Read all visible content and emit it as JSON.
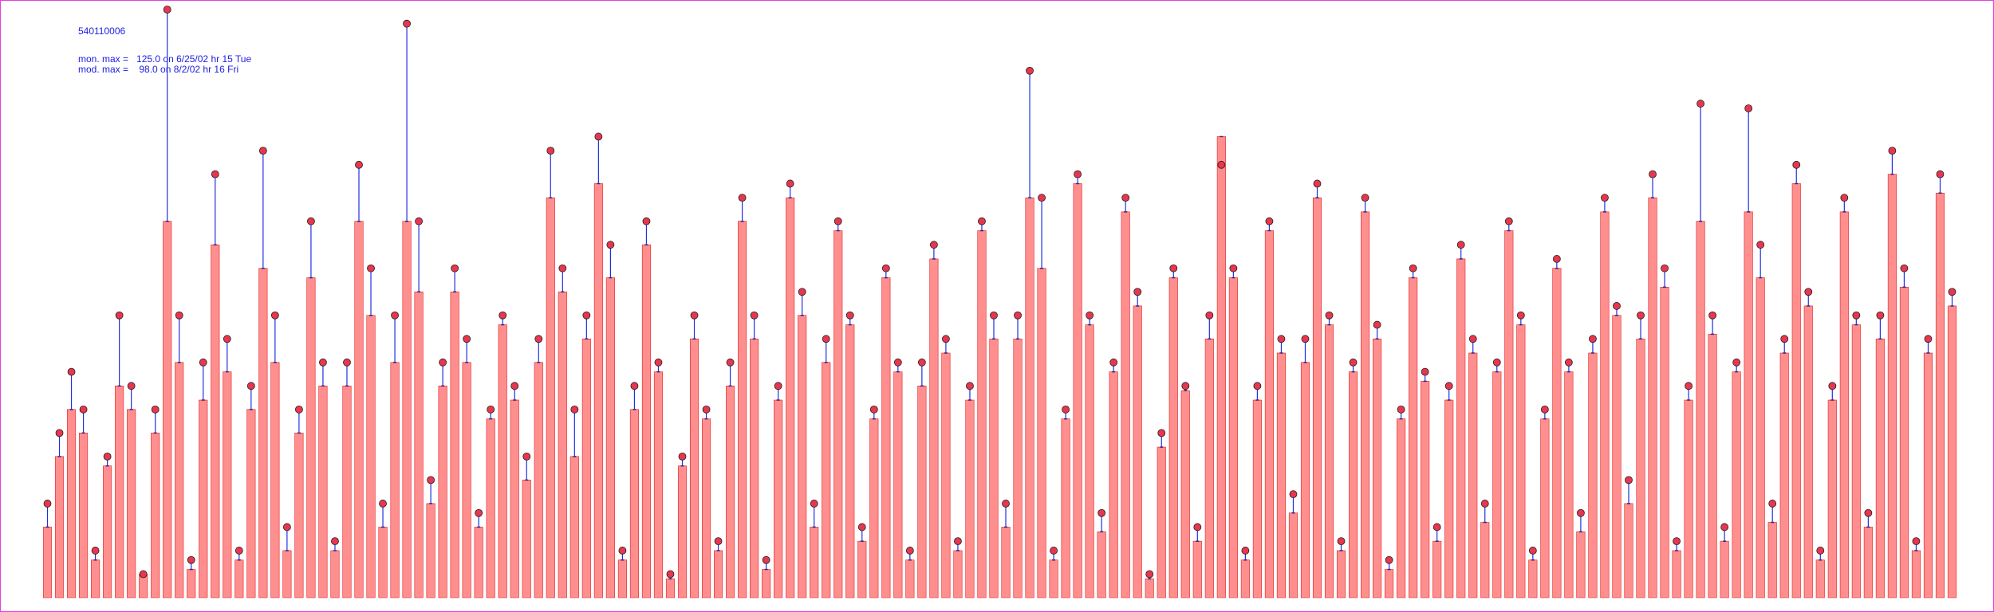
{
  "chart_data": {
    "type": "stem",
    "title": "540110006",
    "annotations": [
      "mon. max =   125.0 on 6/25/02 hr 15 Tue",
      "mod. max =    98.0 on 8/2/02 hr 16 Fri"
    ],
    "series": [
      {
        "color": "#e8364e",
        "values": [
          20,
          35,
          48,
          40,
          10,
          30,
          60,
          45,
          5,
          40,
          125,
          60,
          8,
          50,
          90,
          55,
          10,
          45,
          95,
          60,
          15,
          40,
          80,
          50,
          12,
          50,
          92,
          70,
          20,
          60,
          122,
          80,
          25,
          50,
          70,
          55,
          18,
          40,
          60,
          45,
          30,
          55,
          95,
          70,
          40,
          60,
          98,
          75,
          10,
          45,
          80,
          50,
          5,
          30,
          60,
          40,
          12,
          50,
          85,
          60,
          8,
          45,
          88,
          65,
          20,
          55,
          80,
          60,
          15,
          40,
          70,
          50,
          10,
          50,
          75,
          55,
          12,
          45,
          80,
          60,
          20,
          60,
          112,
          85,
          10,
          40,
          90,
          60,
          18,
          50,
          85,
          65,
          5,
          35,
          70,
          45,
          15,
          60,
          92,
          70,
          10,
          45,
          80,
          55,
          22,
          55,
          88,
          60,
          12,
          50,
          85,
          58,
          8,
          40,
          70,
          48,
          15,
          45,
          75,
          55,
          20,
          50,
          80,
          60,
          10,
          40,
          72,
          50,
          18,
          55,
          85,
          62,
          25,
          60,
          90,
          70,
          12,
          45,
          105,
          60,
          15,
          50,
          104,
          75,
          20,
          55,
          92,
          65,
          10,
          45,
          85,
          60,
          18,
          60,
          95,
          70,
          12,
          55,
          90,
          65
        ]
      },
      {
        "color": "#ff6a6a",
        "values": [
          15,
          30,
          40,
          35,
          8,
          28,
          45,
          40,
          5,
          35,
          80,
          50,
          6,
          42,
          75,
          48,
          8,
          40,
          70,
          50,
          10,
          35,
          68,
          45,
          10,
          45,
          80,
          60,
          15,
          50,
          80,
          65,
          20,
          45,
          65,
          50,
          15,
          38,
          58,
          42,
          25,
          50,
          85,
          65,
          30,
          55,
          88,
          68,
          8,
          40,
          75,
          48,
          4,
          28,
          55,
          38,
          10,
          45,
          80,
          55,
          6,
          42,
          85,
          60,
          15,
          50,
          78,
          58,
          12,
          38,
          68,
          48,
          8,
          45,
          72,
          52,
          10,
          42,
          78,
          55,
          15,
          55,
          85,
          70,
          8,
          38,
          88,
          58,
          14,
          48,
          82,
          62,
          4,
          32,
          68,
          44,
          12,
          55,
          98,
          68,
          8,
          42,
          78,
          52,
          18,
          50,
          85,
          58,
          10,
          48,
          82,
          55,
          6,
          38,
          68,
          46,
          12,
          42,
          72,
          52,
          16,
          48,
          78,
          58,
          8,
          38,
          70,
          48,
          14,
          52,
          82,
          60,
          20,
          55,
          85,
          66,
          10,
          42,
          80,
          56,
          12,
          48,
          82,
          68,
          16,
          52,
          88,
          62,
          8,
          42,
          82,
          58,
          15,
          55,
          90,
          66,
          10,
          52,
          86,
          62
        ]
      }
    ]
  }
}
